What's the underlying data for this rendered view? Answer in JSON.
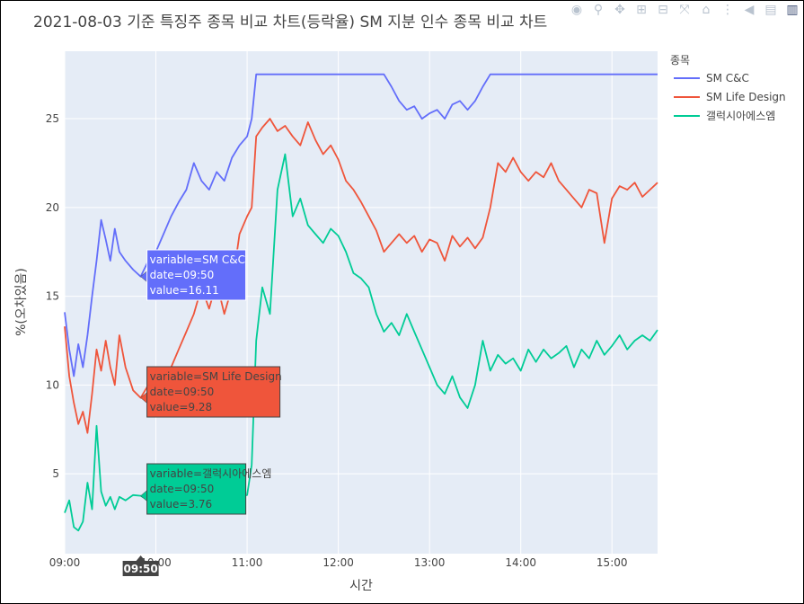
{
  "title": "2021-08-03 기준 특징주 종목 비교 차트(등락율) SM 지분 인수 종목 비교 차트",
  "modebar": [
    "camera-icon",
    "zoom-icon",
    "pan-icon",
    "zoom-in-icon",
    "zoom-out-icon",
    "autoscale-icon",
    "reset-axes-icon",
    "spike-icon",
    "hover-closest-icon",
    "hover-compare-icon",
    "plotly-logo-icon"
  ],
  "chart_data": {
    "type": "line",
    "xlabel": "시간",
    "ylabel": "%(오차있음)",
    "xlim": [
      "09:00",
      "15:30"
    ],
    "ylim": [
      0.5,
      28.8
    ],
    "x_ticks": [
      "09:00",
      "10:00",
      "11:00",
      "12:00",
      "13:00",
      "14:00",
      "15:00"
    ],
    "y_ticks": [
      5,
      10,
      15,
      20,
      25
    ],
    "legend_title": "종목",
    "legend_position": "right",
    "grid": true,
    "series": [
      {
        "name": "SM C&C",
        "color": "#636efa",
        "x": [
          "09:00",
          "09:03",
          "09:06",
          "09:09",
          "09:12",
          "09:15",
          "09:18",
          "09:21",
          "09:24",
          "09:27",
          "09:30",
          "09:33",
          "09:36",
          "09:40",
          "09:45",
          "09:50",
          "09:55",
          "10:00",
          "10:05",
          "10:10",
          "10:15",
          "10:20",
          "10:25",
          "10:30",
          "10:35",
          "10:40",
          "10:45",
          "10:50",
          "10:55",
          "11:00",
          "11:03",
          "11:06",
          "11:10",
          "11:20",
          "11:40",
          "12:00",
          "12:20",
          "12:30",
          "12:35",
          "12:40",
          "12:45",
          "12:50",
          "12:55",
          "13:00",
          "13:05",
          "13:10",
          "13:15",
          "13:20",
          "13:25",
          "13:30",
          "13:35",
          "13:40",
          "14:00",
          "14:30",
          "15:00",
          "15:30"
        ],
        "values": [
          14.1,
          12.0,
          10.5,
          12.3,
          11.0,
          12.8,
          15.0,
          17.0,
          19.3,
          18.2,
          17.0,
          18.8,
          17.5,
          17.0,
          16.5,
          16.11,
          17.0,
          17.5,
          18.5,
          19.5,
          20.3,
          21.0,
          22.5,
          21.5,
          21.0,
          22.0,
          21.5,
          22.8,
          23.5,
          24.0,
          25.0,
          27.5,
          27.5,
          27.5,
          27.5,
          27.5,
          27.5,
          27.5,
          26.8,
          26.0,
          25.5,
          25.7,
          25.0,
          25.3,
          25.5,
          25.0,
          25.8,
          26.0,
          25.5,
          26.0,
          26.8,
          27.5,
          27.5,
          27.5,
          27.5,
          27.5
        ]
      },
      {
        "name": "SM Life Design",
        "color": "#ef553b",
        "x": [
          "09:00",
          "09:03",
          "09:06",
          "09:09",
          "09:12",
          "09:15",
          "09:18",
          "09:21",
          "09:24",
          "09:27",
          "09:30",
          "09:33",
          "09:36",
          "09:40",
          "09:45",
          "09:50",
          "09:55",
          "10:00",
          "10:05",
          "10:10",
          "10:15",
          "10:20",
          "10:25",
          "10:30",
          "10:35",
          "10:40",
          "10:45",
          "10:50",
          "10:55",
          "11:00",
          "11:03",
          "11:06",
          "11:10",
          "11:15",
          "11:20",
          "11:25",
          "11:30",
          "11:35",
          "11:40",
          "11:45",
          "11:50",
          "11:55",
          "12:00",
          "12:05",
          "12:10",
          "12:15",
          "12:20",
          "12:25",
          "12:30",
          "12:35",
          "12:40",
          "12:45",
          "12:50",
          "12:55",
          "13:00",
          "13:05",
          "13:10",
          "13:15",
          "13:20",
          "13:25",
          "13:30",
          "13:35",
          "13:40",
          "13:45",
          "13:50",
          "13:55",
          "14:00",
          "14:05",
          "14:10",
          "14:15",
          "14:20",
          "14:25",
          "14:30",
          "14:35",
          "14:40",
          "14:45",
          "14:50",
          "14:55",
          "15:00",
          "15:05",
          "15:10",
          "15:15",
          "15:20",
          "15:25",
          "15:30"
        ],
        "values": [
          13.3,
          10.5,
          9.0,
          7.8,
          8.5,
          7.3,
          9.5,
          12.0,
          10.8,
          12.5,
          11.0,
          10.0,
          12.8,
          11.0,
          9.7,
          9.28,
          10.0,
          9.5,
          10.5,
          11.0,
          12.0,
          13.0,
          14.0,
          15.5,
          14.3,
          15.8,
          14.0,
          15.5,
          18.5,
          19.5,
          20.0,
          24.0,
          24.5,
          25.0,
          24.3,
          24.6,
          24.0,
          23.5,
          24.8,
          23.8,
          23.0,
          23.5,
          22.7,
          21.5,
          21.0,
          20.3,
          19.5,
          18.7,
          17.5,
          18.0,
          18.5,
          18.0,
          18.4,
          17.5,
          18.2,
          18.0,
          17.0,
          18.4,
          17.8,
          18.3,
          17.7,
          18.3,
          20.0,
          22.5,
          22.0,
          22.8,
          22.0,
          21.5,
          22.0,
          21.7,
          22.5,
          21.5,
          21.0,
          20.5,
          20.0,
          21.0,
          20.8,
          18.0,
          20.5,
          21.2,
          21.0,
          21.4,
          20.6,
          21.0,
          21.4
        ]
      },
      {
        "name": "갤럭시아에스엠",
        "color": "#00cc96",
        "x": [
          "09:00",
          "09:03",
          "09:06",
          "09:09",
          "09:12",
          "09:15",
          "09:18",
          "09:21",
          "09:24",
          "09:27",
          "09:30",
          "09:33",
          "09:36",
          "09:40",
          "09:45",
          "09:50",
          "09:55",
          "10:00",
          "10:05",
          "10:10",
          "10:15",
          "10:20",
          "10:25",
          "10:30",
          "10:35",
          "10:40",
          "10:45",
          "10:50",
          "10:55",
          "11:00",
          "11:03",
          "11:06",
          "11:10",
          "11:15",
          "11:20",
          "11:25",
          "11:30",
          "11:35",
          "11:40",
          "11:45",
          "11:50",
          "11:55",
          "12:00",
          "12:05",
          "12:10",
          "12:15",
          "12:20",
          "12:25",
          "12:30",
          "12:35",
          "12:40",
          "12:45",
          "12:50",
          "12:55",
          "13:00",
          "13:05",
          "13:10",
          "13:15",
          "13:20",
          "13:25",
          "13:30",
          "13:35",
          "13:40",
          "13:45",
          "13:50",
          "13:55",
          "14:00",
          "14:05",
          "14:10",
          "14:15",
          "14:20",
          "14:25",
          "14:30",
          "14:35",
          "14:40",
          "14:45",
          "14:50",
          "14:55",
          "15:00",
          "15:05",
          "15:10",
          "15:15",
          "15:20",
          "15:25",
          "15:30"
        ],
        "values": [
          2.8,
          3.5,
          2.0,
          1.8,
          2.3,
          4.5,
          3.0,
          7.7,
          4.0,
          3.2,
          3.7,
          3.0,
          3.7,
          3.5,
          3.8,
          3.76,
          3.5,
          3.3,
          3.5,
          3.4,
          3.3,
          3.7,
          3.5,
          3.8,
          3.6,
          3.7,
          3.5,
          3.8,
          3.7,
          3.8,
          5.5,
          12.5,
          15.5,
          14.0,
          21.0,
          23.0,
          19.5,
          20.5,
          19.0,
          18.5,
          18.0,
          18.8,
          18.4,
          17.5,
          16.3,
          16.0,
          15.5,
          14.0,
          13.0,
          13.5,
          12.8,
          14.0,
          13.0,
          12.0,
          11.0,
          10.0,
          9.5,
          10.5,
          9.3,
          8.7,
          10.0,
          12.5,
          10.8,
          11.7,
          11.2,
          11.5,
          10.8,
          12.0,
          11.3,
          12.0,
          11.5,
          11.8,
          12.2,
          11.0,
          12.0,
          11.5,
          12.5,
          11.7,
          12.2,
          12.8,
          12.0,
          12.5,
          12.8,
          12.5,
          13.1
        ]
      }
    ]
  },
  "hover": {
    "x_label": "09:50",
    "x_value": "09:50",
    "items": [
      {
        "series": 0,
        "lines": [
          "variable=SM C&C",
          "date=09:50",
          "value=16.11"
        ],
        "text_color": "#ffffff"
      },
      {
        "series": 1,
        "lines": [
          "variable=SM Life Design",
          "date=09:50",
          "value=9.28"
        ],
        "text_color": "#444444"
      },
      {
        "series": 2,
        "lines": [
          "variable=갤럭시아에스엠",
          "date=09:50",
          "value=3.76"
        ],
        "text_color": "#444444"
      }
    ]
  }
}
